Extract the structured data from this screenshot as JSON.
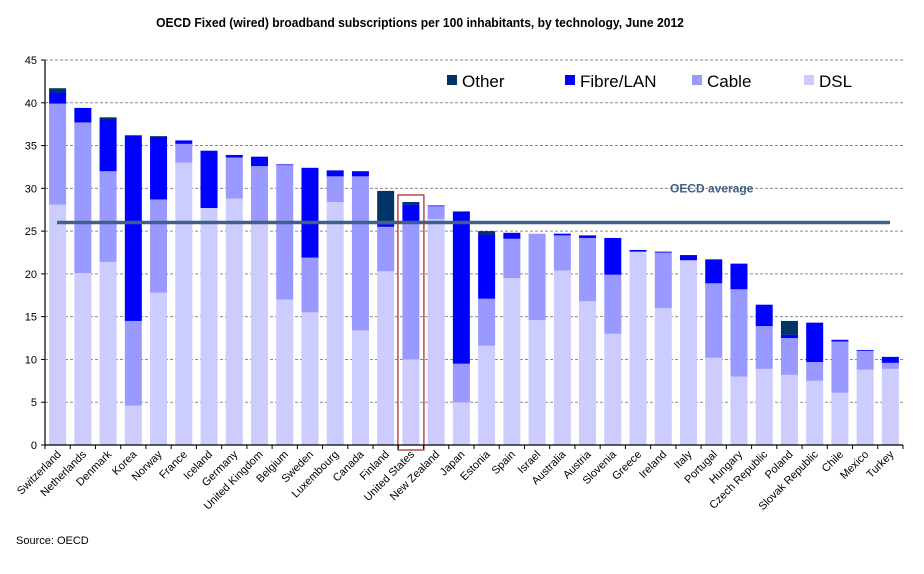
{
  "chart_data": {
    "type": "bar",
    "stacked": true,
    "title": "OECD  Fixed (wired) broadband subscriptions  per 100 inhabitants, by technology, June 2012",
    "xlabel": "",
    "ylabel": "",
    "ylim": [
      0,
      45
    ],
    "yticks": [
      0,
      5,
      10,
      15,
      20,
      25,
      30,
      35,
      40,
      45
    ],
    "grid": true,
    "legend_position": "top-right",
    "categories": [
      "Switzerland",
      "Netherlands",
      "Denmark",
      "Korea",
      "Norway",
      "France",
      "Iceland",
      "Germany",
      "United Kingdom",
      "Belgium",
      "Sweden",
      "Luxembourg",
      "Canada",
      "Finland",
      "United States",
      "New Zealand",
      "Japan",
      "Estonia",
      "Spain",
      "Israel",
      "Australia",
      "Austria",
      "Slovenia",
      "Greece",
      "Ireland",
      "Italy",
      "Portugal",
      "Hungary",
      "Czech Republic",
      "Poland",
      "Slovak Republic",
      "Chile",
      "Mexico",
      "Turkey"
    ],
    "series": [
      {
        "name": "DSL",
        "color": "#CCCCFF",
        "values": [
          28.1,
          20.1,
          21.4,
          4.6,
          17.8,
          33.0,
          27.7,
          28.8,
          26.0,
          17.0,
          15.5,
          28.4,
          13.4,
          20.3,
          10.0,
          26.4,
          5.0,
          11.6,
          19.5,
          14.6,
          20.4,
          16.8,
          13.0,
          22.6,
          16.0,
          21.6,
          10.2,
          8.0,
          8.9,
          8.2,
          7.5,
          6.1,
          8.8,
          8.9
        ]
      },
      {
        "name": "Cable",
        "color": "#9999FF",
        "values": [
          11.8,
          17.6,
          10.6,
          9.9,
          10.9,
          2.2,
          0.0,
          4.8,
          6.6,
          15.7,
          6.4,
          3.0,
          18.0,
          5.2,
          16.1,
          1.5,
          4.5,
          5.5,
          4.6,
          10.1,
          4.1,
          7.4,
          6.9,
          0.0,
          6.5,
          0.0,
          8.7,
          10.2,
          5.0,
          4.3,
          2.2,
          6.0,
          2.2,
          0.7
        ]
      },
      {
        "name": "Fibre/LAN",
        "color": "#0000FF",
        "values": [
          1.3,
          1.7,
          6.1,
          21.7,
          7.3,
          0.4,
          6.7,
          0.3,
          1.1,
          0.1,
          10.5,
          0.7,
          0.6,
          0.3,
          2.0,
          0.1,
          17.8,
          7.5,
          0.7,
          0.0,
          0.2,
          0.3,
          4.3,
          0.2,
          0.1,
          0.6,
          2.8,
          3.0,
          2.5,
          0.4,
          4.6,
          0.2,
          0.1,
          0.7
        ]
      },
      {
        "name": "Other",
        "color": "#003366",
        "values": [
          0.5,
          0.0,
          0.2,
          0.0,
          0.1,
          0.0,
          0.0,
          0.0,
          0.0,
          0.0,
          0.0,
          0.0,
          0.0,
          3.9,
          0.3,
          0.0,
          0.0,
          0.4,
          0.0,
          0.0,
          0.0,
          0.0,
          0.0,
          0.0,
          0.0,
          0.0,
          0.0,
          0.0,
          0.0,
          1.6,
          0.0,
          0.0,
          0.0,
          0.0
        ]
      }
    ],
    "legend_order": [
      "Other",
      "Fibre/LAN",
      "Cable",
      "DSL"
    ],
    "reference_line": {
      "label": "OECD average",
      "value": 26.0,
      "color": "#3F6088"
    },
    "highlight": {
      "category": "United States",
      "color": "#B03030"
    },
    "source": "Source: OECD"
  }
}
